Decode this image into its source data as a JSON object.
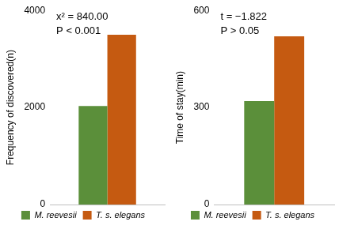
{
  "chart_data": [
    {
      "type": "bar",
      "y_label": "Frequency of discovered(n)",
      "annotations": [
        "x² = 840.00",
        "P < 0.001"
      ],
      "categories": [
        null
      ],
      "series": [
        {
          "name": "M. reevesii",
          "color": "#5b8f3a",
          "values": [
            2030
          ]
        },
        {
          "name": "T. s. elegans",
          "color": "#c55a11",
          "values": [
            3500
          ]
        }
      ],
      "ylim": [
        0,
        4000
      ],
      "yticks": [
        0,
        2000,
        4000
      ],
      "grid": false,
      "legend": "bottom",
      "tick_labels": "y"
    },
    {
      "type": "bar",
      "y_label": "Time of stay(min)",
      "annotations": [
        "t = −1.822",
        "P > 0.05"
      ],
      "categories": [
        null
      ],
      "series": [
        {
          "name": "M. reevesii",
          "color": "#5b8f3a",
          "values": [
            320
          ]
        },
        {
          "name": "T. s. elegans",
          "color": "#c55a11",
          "values": [
            520
          ]
        }
      ],
      "ylim": [
        0,
        600
      ],
      "yticks": [
        0,
        300,
        600
      ],
      "grid": false,
      "legend": "bottom",
      "tick_labels": "y"
    }
  ]
}
